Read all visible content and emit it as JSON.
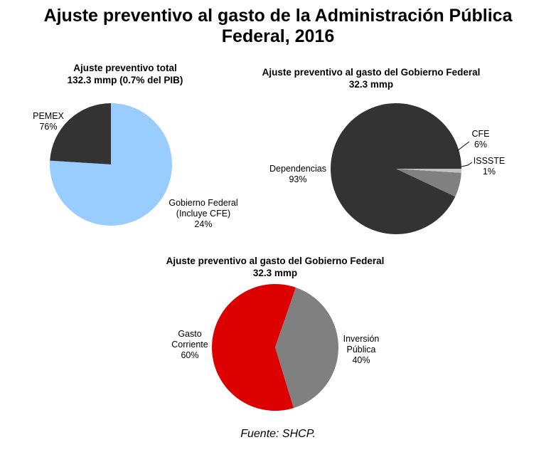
{
  "title_line1": "Ajuste preventivo al gasto de la Administración Pública",
  "title_line2": "Federal, 2016",
  "source": "Fuente: SHCP.",
  "chart_data": [
    {
      "type": "pie",
      "title": "Ajuste preventivo total",
      "subtitle": "132.3 mmp (0.7% del PIB)",
      "slices": [
        {
          "label_lines": [
            "PEMEX"
          ],
          "value": 76,
          "value_label": "76%",
          "color": "#99ccff"
        },
        {
          "label_lines": [
            "Gobierno Federal",
            "(Incluye CFE)"
          ],
          "value": 24,
          "value_label": "24%",
          "color": "#333333"
        }
      ]
    },
    {
      "type": "pie",
      "title": "Ajuste preventivo al gasto del Gobierno Federal",
      "subtitle": "32.3 mmp",
      "slices": [
        {
          "label_lines": [
            "Dependencias"
          ],
          "value": 93,
          "value_label": "93%",
          "color": "#333333"
        },
        {
          "label_lines": [
            "CFE"
          ],
          "value": 6,
          "value_label": "6%",
          "color": "#808080"
        },
        {
          "label_lines": [
            "ISSSTE"
          ],
          "value": 1,
          "value_label": "1%",
          "color": "#c0c0c0"
        }
      ]
    },
    {
      "type": "pie",
      "title": "Ajuste preventivo al gasto del Gobierno Federal",
      "subtitle": "32.3 mmp",
      "slices": [
        {
          "label_lines": [
            "Gasto",
            "Corriente"
          ],
          "value": 60,
          "value_label": "60%",
          "color": "#dd0000"
        },
        {
          "label_lines": [
            "Inversión",
            "Pública"
          ],
          "value": 40,
          "value_label": "40%",
          "color": "#808080"
        }
      ]
    }
  ]
}
